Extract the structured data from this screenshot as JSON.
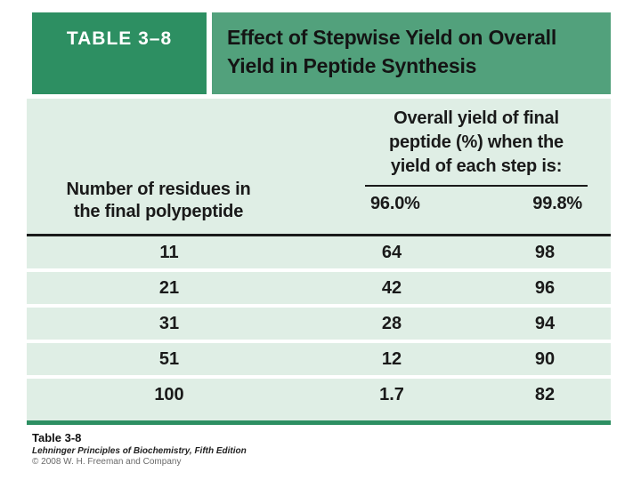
{
  "header": {
    "label": "TABLE 3–8",
    "title_line1": "Effect of Stepwise Yield on Overall",
    "title_line2": "Yield in Peptide Synthesis"
  },
  "column_headers": {
    "residues_line1": "Number of residues in",
    "residues_line2": "the final polypeptide",
    "yield_group_line1": "Overall yield of final",
    "yield_group_line2": "peptide (%) when the",
    "yield_group_line3": "yield of each step is:",
    "sub_col_1": "96.0%",
    "sub_col_2": "99.8%"
  },
  "rows": [
    {
      "residues": "11",
      "yield_96": "64",
      "yield_998": "98"
    },
    {
      "residues": "21",
      "yield_96": "42",
      "yield_998": "96"
    },
    {
      "residues": "31",
      "yield_96": "28",
      "yield_998": "94"
    },
    {
      "residues": "51",
      "yield_96": "12",
      "yield_998": "90"
    },
    {
      "residues": "100",
      "yield_96": "1.7",
      "yield_998": "82"
    }
  ],
  "chart_data": {
    "type": "table",
    "title": "Effect of Stepwise Yield on Overall Yield in Peptide Synthesis",
    "columns": [
      "Number of residues in the final polypeptide",
      "Overall yield of final peptide (%) when yield of each step is 96.0%",
      "Overall yield of final peptide (%) when yield of each step is 99.8%"
    ],
    "rows": [
      [
        11,
        64,
        98
      ],
      [
        21,
        42,
        96
      ],
      [
        31,
        28,
        94
      ],
      [
        51,
        12,
        90
      ],
      [
        100,
        1.7,
        82
      ]
    ]
  },
  "footer": {
    "table_ref": "Table 3-8",
    "source": "Lehninger Principles of Biochemistry, Fifth Edition",
    "copyright": "© 2008 W. H. Freeman and Company"
  },
  "colors": {
    "header_label_bg": "#2d8f62",
    "header_title_bg": "#52a17c",
    "body_bg": "#dfeee5",
    "bottom_border": "#2d8f62",
    "text": "#1a1a1a"
  }
}
